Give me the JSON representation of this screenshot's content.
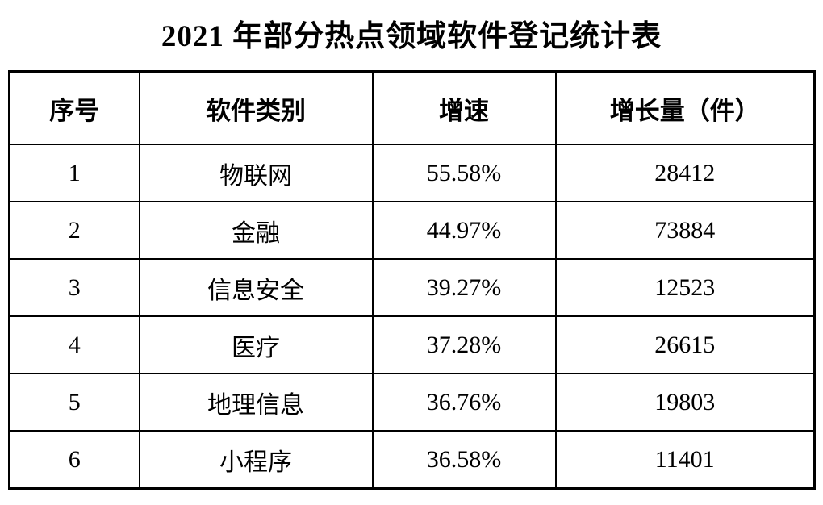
{
  "title": "2021 年部分热点领域软件登记统计表",
  "table": {
    "columns": [
      "序号",
      "软件类别",
      "增速",
      "增长量（件）"
    ],
    "rows": [
      [
        "1",
        "物联网",
        "55.58%",
        "28412"
      ],
      [
        "2",
        "金融",
        "44.97%",
        "73884"
      ],
      [
        "3",
        "信息安全",
        "39.27%",
        "12523"
      ],
      [
        "4",
        "医疗",
        "37.28%",
        "26615"
      ],
      [
        "5",
        "地理信息",
        "36.76%",
        "19803"
      ],
      [
        "6",
        "小程序",
        "36.58%",
        "11401"
      ]
    ]
  },
  "colors": {
    "background": "#ffffff",
    "text": "#000000",
    "border": "#000000"
  },
  "chart_data": {
    "type": "table",
    "title": "2021 年部分热点领域软件登记统计表",
    "columns": [
      "序号",
      "软件类别",
      "增速",
      "增长量（件）"
    ],
    "categories": [
      "物联网",
      "金融",
      "信息安全",
      "医疗",
      "地理信息",
      "小程序"
    ],
    "series": [
      {
        "name": "增速(%)",
        "values": [
          55.58,
          44.97,
          39.27,
          37.28,
          36.76,
          36.58
        ]
      },
      {
        "name": "增长量(件)",
        "values": [
          28412,
          73884,
          12523,
          26615,
          19803,
          11401
        ]
      }
    ]
  }
}
